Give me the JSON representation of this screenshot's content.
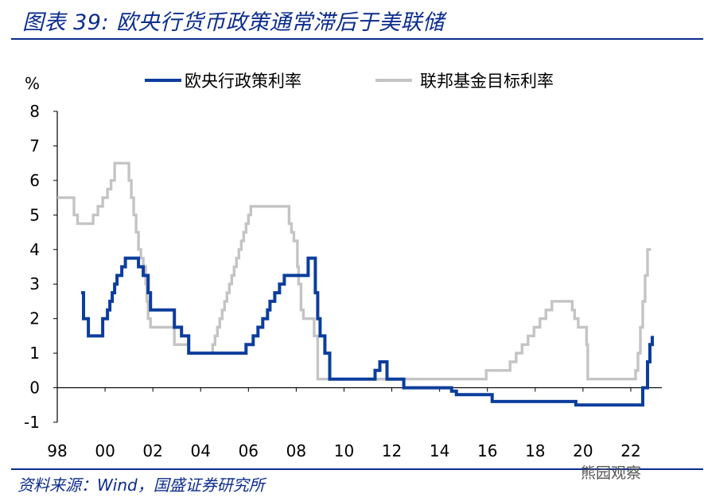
{
  "title": "图表 39:  欧央行货币政策通常滞后于美联储",
  "source": "资料来源：Wind，国盛证券研究所",
  "watermark": "熊园观察",
  "colors": {
    "ecb": "#0b3d9c",
    "fed": "#c4c4c4",
    "accent": "#0b2c8c"
  },
  "chart_data": {
    "type": "line",
    "ylabel": "%",
    "ylim": [
      -1,
      8
    ],
    "xlim": [
      1998,
      2023.3
    ],
    "yticks": [
      -1,
      0,
      1,
      2,
      3,
      4,
      5,
      6,
      7,
      8
    ],
    "xticks": [
      1998,
      2000,
      2002,
      2004,
      2006,
      2008,
      2010,
      2012,
      2014,
      2016,
      2018,
      2020,
      2022
    ],
    "xtick_labels": [
      "98",
      "00",
      "02",
      "04",
      "06",
      "08",
      "10",
      "12",
      "14",
      "16",
      "18",
      "20",
      "22"
    ],
    "legend_position": "top",
    "series": [
      {
        "name": "欧央行政策利率",
        "color": "#0b3d9c",
        "step": true,
        "x": [
          1999.0,
          1999.1,
          1999.3,
          1999.9,
          2000.1,
          2000.2,
          2000.3,
          2000.4,
          2000.5,
          2000.7,
          2000.85,
          2001.4,
          2001.6,
          2001.8,
          2001.9,
          2002.9,
          2003.2,
          2003.5,
          2005.9,
          2006.2,
          2006.4,
          2006.6,
          2006.8,
          2006.9,
          2007.1,
          2007.3,
          2007.5,
          2008.5,
          2008.8,
          2008.9,
          2009.0,
          2009.2,
          2009.4,
          2011.3,
          2011.5,
          2011.8,
          2012.0,
          2012.5,
          2014.5,
          2014.7,
          2016.2,
          2019.7,
          2022.5,
          2022.7,
          2022.8,
          2022.9
        ],
        "values": [
          2.75,
          2.0,
          1.5,
          2.0,
          2.25,
          2.5,
          2.75,
          3.0,
          3.25,
          3.5,
          3.75,
          3.5,
          3.25,
          2.75,
          2.25,
          1.75,
          1.5,
          1.0,
          1.25,
          1.5,
          1.75,
          2.0,
          2.25,
          2.5,
          2.75,
          3.0,
          3.25,
          3.75,
          2.75,
          2.0,
          1.5,
          1.0,
          0.25,
          0.5,
          0.75,
          0.25,
          0.25,
          0.0,
          -0.1,
          -0.2,
          -0.4,
          -0.5,
          0.0,
          0.75,
          1.25,
          1.5
        ]
      },
      {
        "name": "联邦基金目标利率",
        "color": "#c4c4c4",
        "step": true,
        "x": [
          1998.0,
          1998.7,
          1998.85,
          1998.95,
          1999.5,
          1999.7,
          1999.9,
          2000.1,
          2000.25,
          2000.4,
          2001.0,
          2001.1,
          2001.2,
          2001.3,
          2001.4,
          2001.5,
          2001.6,
          2001.7,
          2001.75,
          2001.8,
          2001.9,
          2002.9,
          2003.5,
          2004.5,
          2004.6,
          2004.7,
          2004.8,
          2004.9,
          2005.0,
          2005.1,
          2005.2,
          2005.3,
          2005.4,
          2005.5,
          2005.6,
          2005.7,
          2005.8,
          2005.9,
          2006.0,
          2006.1,
          2006.2,
          2006.3,
          2006.4,
          2006.5,
          2007.7,
          2007.8,
          2007.9,
          2008.05,
          2008.1,
          2008.2,
          2008.3,
          2008.75,
          2008.9,
          2015.95,
          2016.95,
          2017.2,
          2017.45,
          2017.7,
          2017.95,
          2018.2,
          2018.45,
          2018.7,
          2018.95,
          2019.55,
          2019.65,
          2019.8,
          2020.15,
          2020.2,
          2022.2,
          2022.3,
          2022.4,
          2022.5,
          2022.6,
          2022.7,
          2022.85
        ],
        "values": [
          5.5,
          5.0,
          4.75,
          4.75,
          5.0,
          5.25,
          5.5,
          5.75,
          6.0,
          6.5,
          6.0,
          5.5,
          5.0,
          4.5,
          4.0,
          3.75,
          3.5,
          3.0,
          2.5,
          2.0,
          1.75,
          1.25,
          1.0,
          1.25,
          1.5,
          1.75,
          2.0,
          2.25,
          2.5,
          2.75,
          3.0,
          3.25,
          3.5,
          3.75,
          4.0,
          4.25,
          4.5,
          4.75,
          5.0,
          5.25,
          5.25,
          5.25,
          5.25,
          5.25,
          4.75,
          4.5,
          4.25,
          3.5,
          3.0,
          2.25,
          2.0,
          1.5,
          0.25,
          0.5,
          0.75,
          1.0,
          1.25,
          1.5,
          1.75,
          2.0,
          2.25,
          2.5,
          2.5,
          2.25,
          2.0,
          1.75,
          1.25,
          0.25,
          0.5,
          1.0,
          1.75,
          2.5,
          3.25,
          4.0,
          4.0
        ]
      }
    ]
  }
}
